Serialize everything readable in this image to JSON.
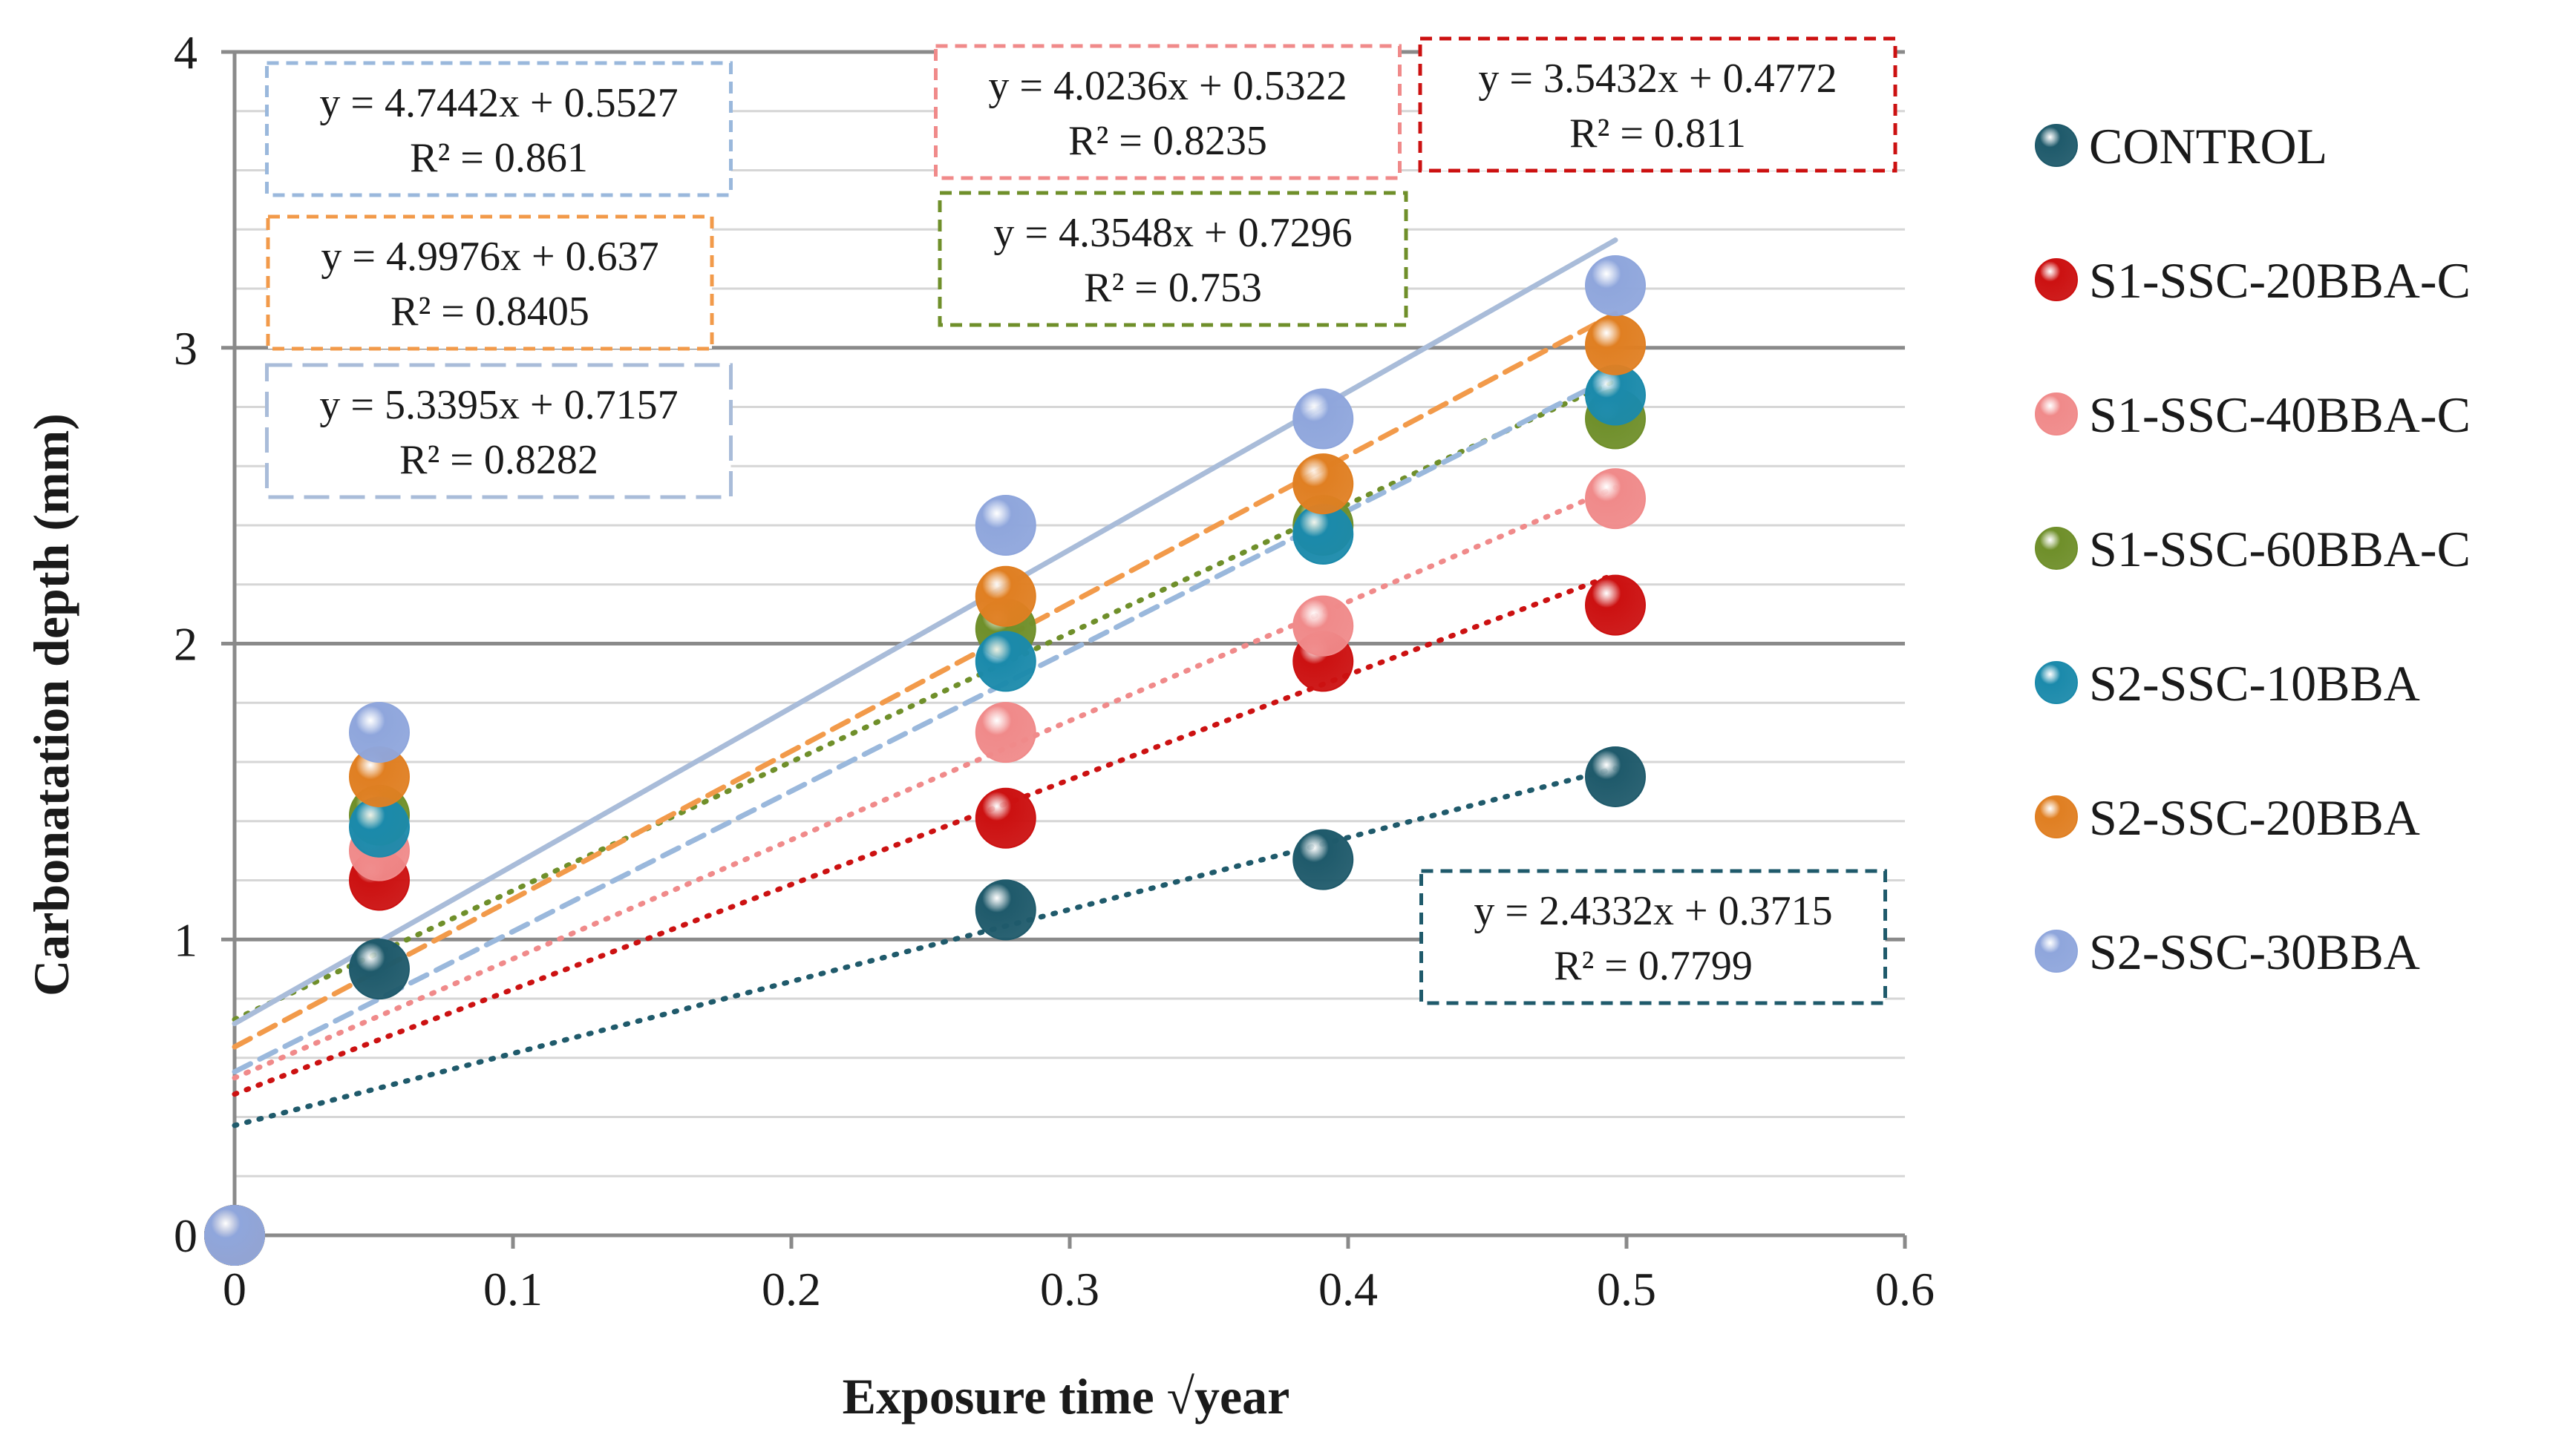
{
  "chart_data": {
    "type": "scatter",
    "title": "",
    "xlabel": "Exposure time √year",
    "ylabel": "Carbonatation depth (mm)",
    "xlim": [
      0,
      0.6
    ],
    "ylim": [
      0,
      4
    ],
    "x_ticks": [
      "0",
      "0.1",
      "0.2",
      "0.3",
      "0.4",
      "0.5",
      "0.6"
    ],
    "y_ticks": [
      "0",
      "1",
      "2",
      "3",
      "4"
    ],
    "major_y_grid": [
      1,
      2,
      3,
      4
    ],
    "minor_y_grid_step": 0.2,
    "legend_position": "right",
    "series": [
      {
        "name": "CONTROL",
        "color": "#1f5a6b",
        "x": [
          0,
          0.052,
          0.277,
          0.391,
          0.496
        ],
        "y": [
          0,
          0.9,
          1.1,
          1.27,
          1.55
        ],
        "trend": {
          "slope": 2.4332,
          "intercept": 0.3715,
          "style": "dotted",
          "color": "#1f5a6b",
          "equation": "y = 2.4332x + 0.3715",
          "r2": "R² = 0.7799",
          "box_style": "dashed"
        }
      },
      {
        "name": "S1-SSC-20BBA-C",
        "color": "#cc1111",
        "x": [
          0,
          0.052,
          0.277,
          0.391,
          0.496
        ],
        "y": [
          0,
          1.2,
          1.41,
          1.94,
          2.13
        ],
        "trend": {
          "slope": 3.5432,
          "intercept": 0.4772,
          "style": "dotted",
          "color": "#cc1111",
          "equation": "y = 3.5432x + 0.4772",
          "r2": "R² = 0.811",
          "box_style": "dashed"
        }
      },
      {
        "name": "S1-SSC-40BBA-C",
        "color": "#f08a8a",
        "x": [
          0,
          0.052,
          0.277,
          0.391,
          0.496
        ],
        "y": [
          0,
          1.3,
          1.7,
          2.06,
          2.49
        ],
        "trend": {
          "slope": 4.0236,
          "intercept": 0.5322,
          "style": "dotted",
          "color": "#f08a8a",
          "equation": "y = 4.0236x + 0.5322",
          "r2": "R² = 0.8235",
          "box_style": "dashed"
        }
      },
      {
        "name": "S1-SSC-60BBA-C",
        "color": "#6f8f2a",
        "x": [
          0,
          0.052,
          0.277,
          0.391,
          0.496
        ],
        "y": [
          0,
          1.42,
          2.05,
          2.4,
          2.76
        ],
        "trend": {
          "slope": 4.3548,
          "intercept": 0.7296,
          "style": "dotted",
          "color": "#6f8f2a",
          "equation": "y = 4.3548x + 0.7296",
          "r2": "R² = 0.753",
          "box_style": "dashed"
        }
      },
      {
        "name": "S2-SSC-10BBA",
        "color": "#1b8aab",
        "x": [
          0,
          0.052,
          0.277,
          0.391,
          0.496
        ],
        "y": [
          0,
          1.38,
          1.94,
          2.37,
          2.84
        ],
        "trend": {
          "slope": 4.7442,
          "intercept": 0.5527,
          "style": "dashed",
          "color": "#9ab8dc",
          "equation": "y = 4.7442x + 0.5527",
          "r2": "R² = 0.861",
          "box_style": "dashed"
        }
      },
      {
        "name": "S2-SSC-20BBA",
        "color": "#e07f22",
        "x": [
          0,
          0.052,
          0.277,
          0.391,
          0.496
        ],
        "y": [
          0,
          1.55,
          2.16,
          2.54,
          3.01
        ],
        "trend": {
          "slope": 4.9976,
          "intercept": 0.637,
          "style": "dashed",
          "color": "#f29a4a",
          "equation": "y = 4.9976x + 0.637",
          "r2": "R² = 0.8405",
          "box_style": "dashed"
        }
      },
      {
        "name": "S2-SSC-30BBA",
        "color": "#8fa6dc",
        "x": [
          0,
          0.052,
          0.277,
          0.391,
          0.496
        ],
        "y": [
          0,
          1.7,
          2.4,
          2.76,
          3.21
        ],
        "trend": {
          "slope": 5.3395,
          "intercept": 0.7157,
          "style": "solid",
          "color": "#a9bcd9",
          "equation": "y = 5.3395x + 0.7157",
          "r2": "R² = 0.8282",
          "box_style": "long-dash"
        }
      }
    ]
  }
}
